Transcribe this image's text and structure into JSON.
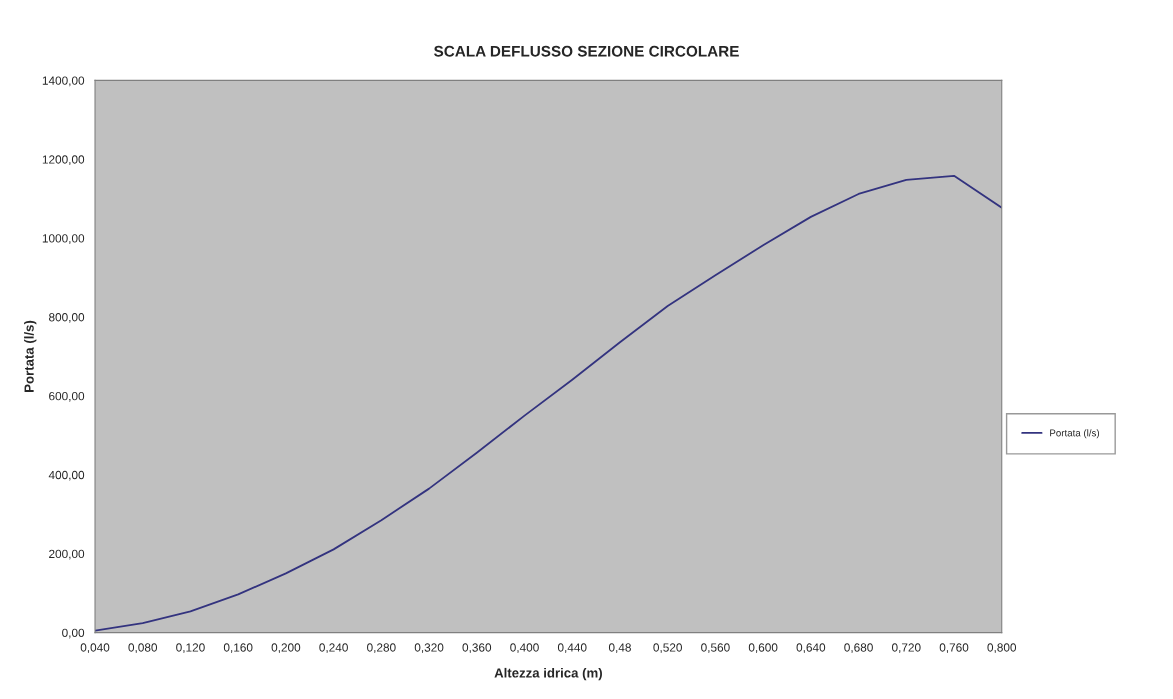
{
  "chart_data": {
    "type": "line",
    "title": "SCALA DEFLUSSO SEZIONE CIRCOLARE",
    "xlabel": "Altezza idrica (m)",
    "ylabel": "Portata (l/s)",
    "categories": [
      "0,040",
      "0,080",
      "0,120",
      "0,160",
      "0,200",
      "0,240",
      "0,280",
      "0,320",
      "0,360",
      "0,400",
      "0,440",
      "0,48",
      "0,520",
      "0,560",
      "0,600",
      "0,640",
      "0,680",
      "0,720",
      "0,760",
      "0,800"
    ],
    "series": [
      {
        "name": "Portata (l/s)",
        "color": "#33337f",
        "values": [
          5,
          24,
          54,
          97,
          150,
          211,
          285,
          365,
          456,
          550,
          641,
          736,
          828,
          906,
          982,
          1054,
          1112,
          1148,
          1158,
          1077
        ]
      }
    ],
    "ylim": [
      0,
      1400
    ],
    "yticks": [
      {
        "value": 0,
        "label": "0,00"
      },
      {
        "value": 200,
        "label": "200,00"
      },
      {
        "value": 400,
        "label": "400,00"
      },
      {
        "value": 600,
        "label": "600,00"
      },
      {
        "value": 800,
        "label": "800,00"
      },
      {
        "value": 1000,
        "label": "1000,00"
      },
      {
        "value": 1200,
        "label": "1200,00"
      },
      {
        "value": 1400,
        "label": "1400,00"
      }
    ],
    "grid": false,
    "legend": "right",
    "marker": "none",
    "line_style": "solid"
  }
}
